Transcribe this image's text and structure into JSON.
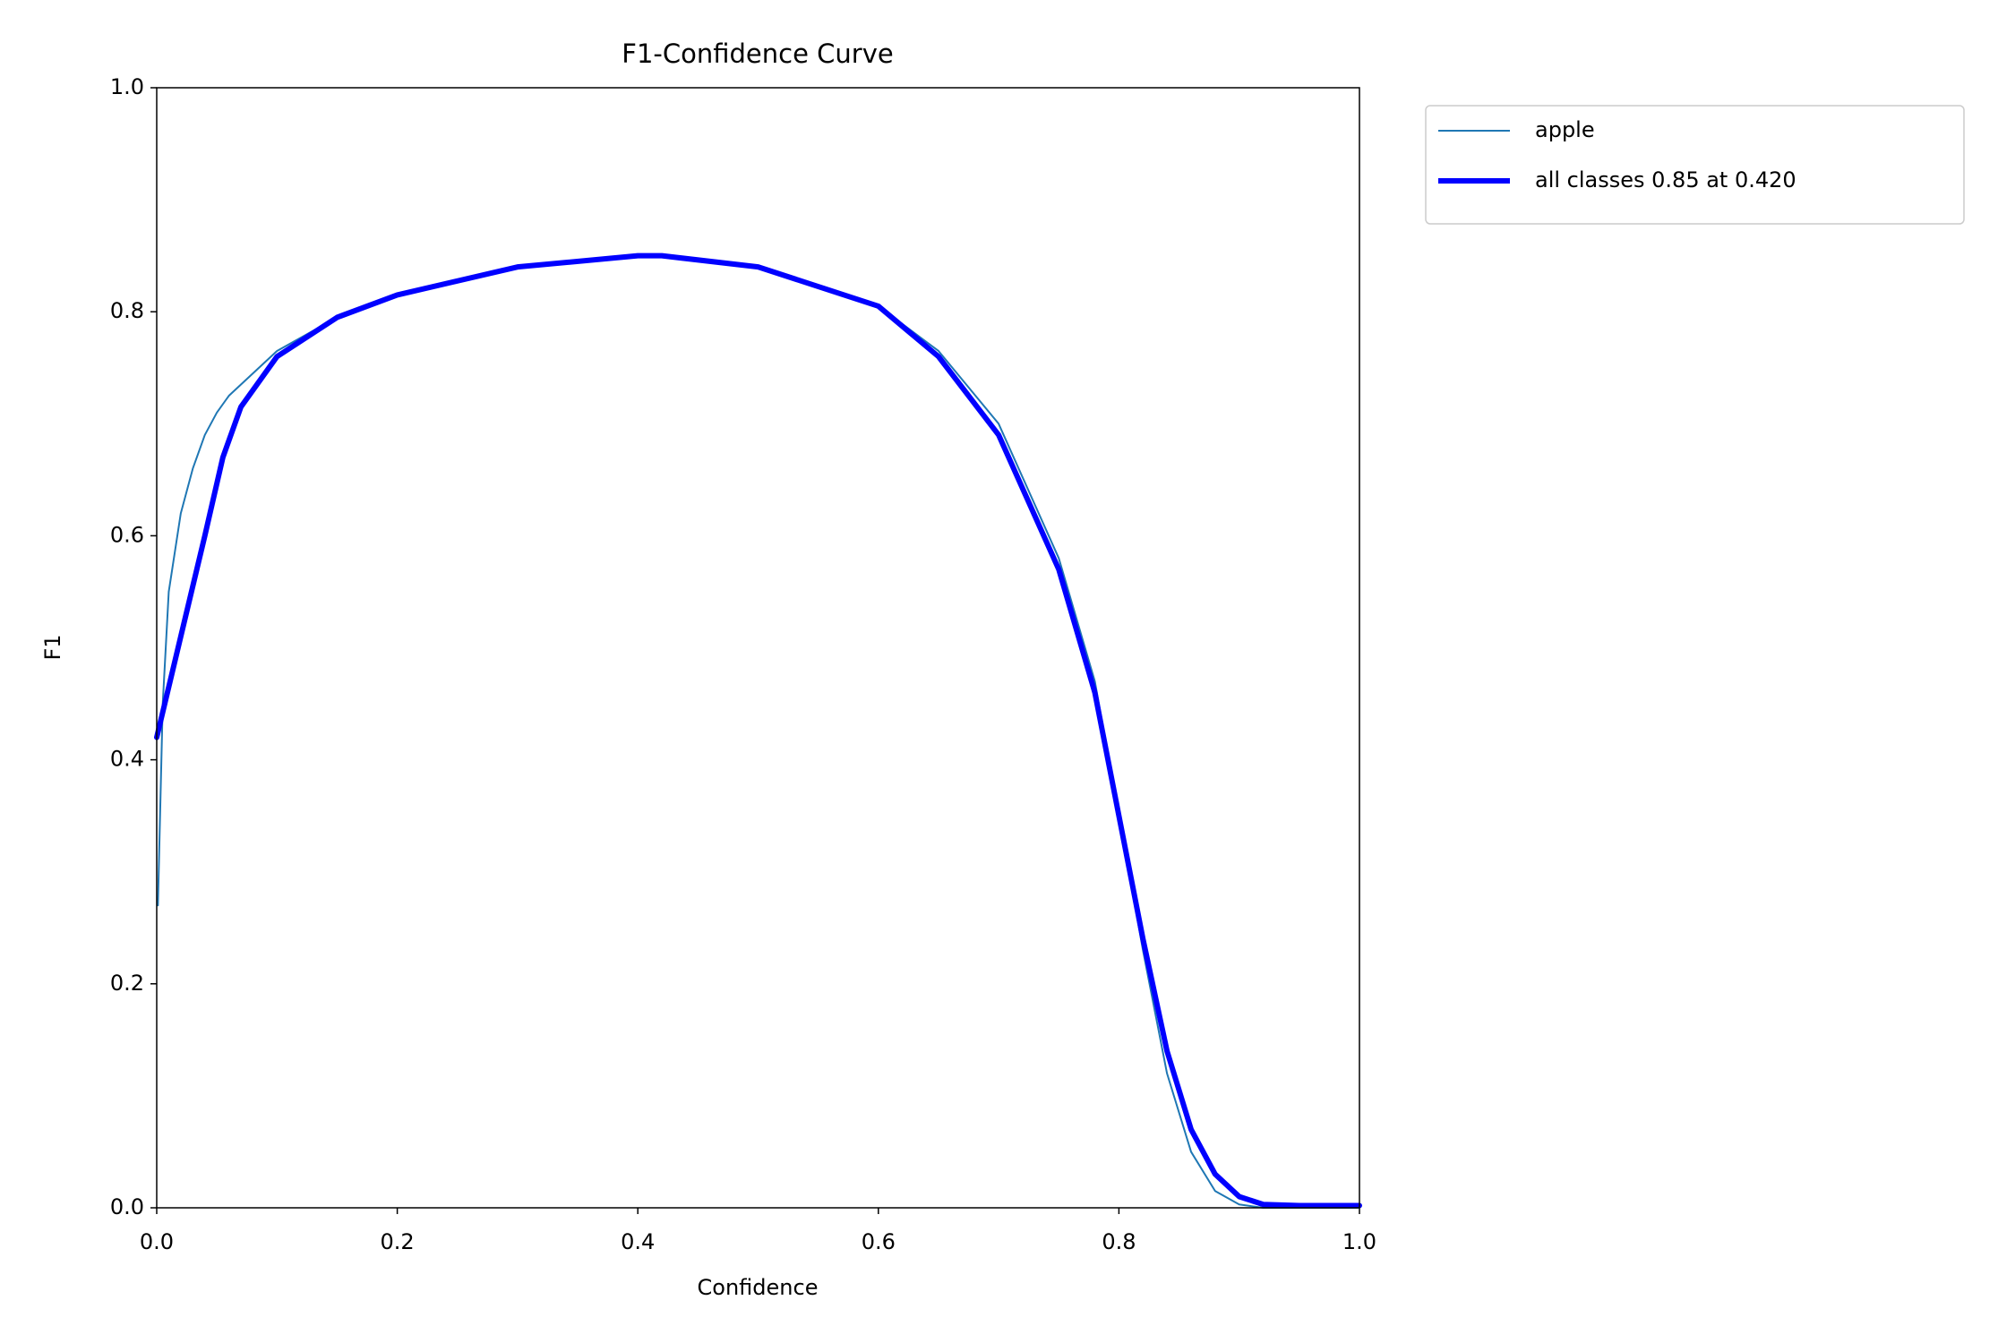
{
  "chart_data": {
    "type": "line",
    "title": "F1-Confidence Curve",
    "x_label": "Confidence",
    "y_label": "F1",
    "xlim": [
      0,
      1
    ],
    "ylim": [
      0,
      1
    ],
    "xticks": [
      {
        "value": 0,
        "label": "0.0"
      },
      0.2,
      0.4,
      0.6,
      0.8,
      {
        "value": 1,
        "label": "1.0"
      }
    ],
    "yticks": [
      {
        "value": 0,
        "label": "0.0"
      },
      0.2,
      0.4,
      0.6,
      0.8,
      {
        "value": 1,
        "label": "1.0"
      }
    ],
    "grid": false,
    "legend": "outside-upper-right",
    "series": [
      {
        "name": "apple",
        "color": "#1f77b4",
        "width": 1,
        "x": [
          0.001,
          0.005,
          0.01,
          0.02,
          0.03,
          0.04,
          0.05,
          0.06,
          0.08,
          0.1,
          0.15,
          0.2,
          0.3,
          0.4,
          0.42,
          0.5,
          0.6,
          0.65,
          0.7,
          0.75,
          0.78,
          0.8,
          0.82,
          0.84,
          0.86,
          0.88,
          0.9,
          0.92,
          1.0
        ],
        "values": [
          0.27,
          0.45,
          0.55,
          0.62,
          0.66,
          0.69,
          0.71,
          0.725,
          0.745,
          0.765,
          0.795,
          0.815,
          0.84,
          0.85,
          0.85,
          0.84,
          0.805,
          0.765,
          0.7,
          0.58,
          0.47,
          0.35,
          0.23,
          0.12,
          0.05,
          0.015,
          0.003,
          0.0,
          0.0
        ]
      },
      {
        "name": "all classes 0.85 at 0.420",
        "color": "#0000ff",
        "width": 3,
        "x": [
          0.0,
          0.02,
          0.04,
          0.055,
          0.07,
          0.1,
          0.15,
          0.2,
          0.3,
          0.4,
          0.42,
          0.5,
          0.6,
          0.65,
          0.7,
          0.75,
          0.78,
          0.8,
          0.82,
          0.84,
          0.86,
          0.88,
          0.9,
          0.92,
          0.95,
          1.0
        ],
        "values": [
          0.42,
          0.51,
          0.6,
          0.67,
          0.715,
          0.76,
          0.795,
          0.815,
          0.84,
          0.85,
          0.85,
          0.84,
          0.805,
          0.76,
          0.69,
          0.57,
          0.46,
          0.35,
          0.24,
          0.14,
          0.07,
          0.03,
          0.01,
          0.003,
          0.002,
          0.002
        ]
      }
    ]
  }
}
